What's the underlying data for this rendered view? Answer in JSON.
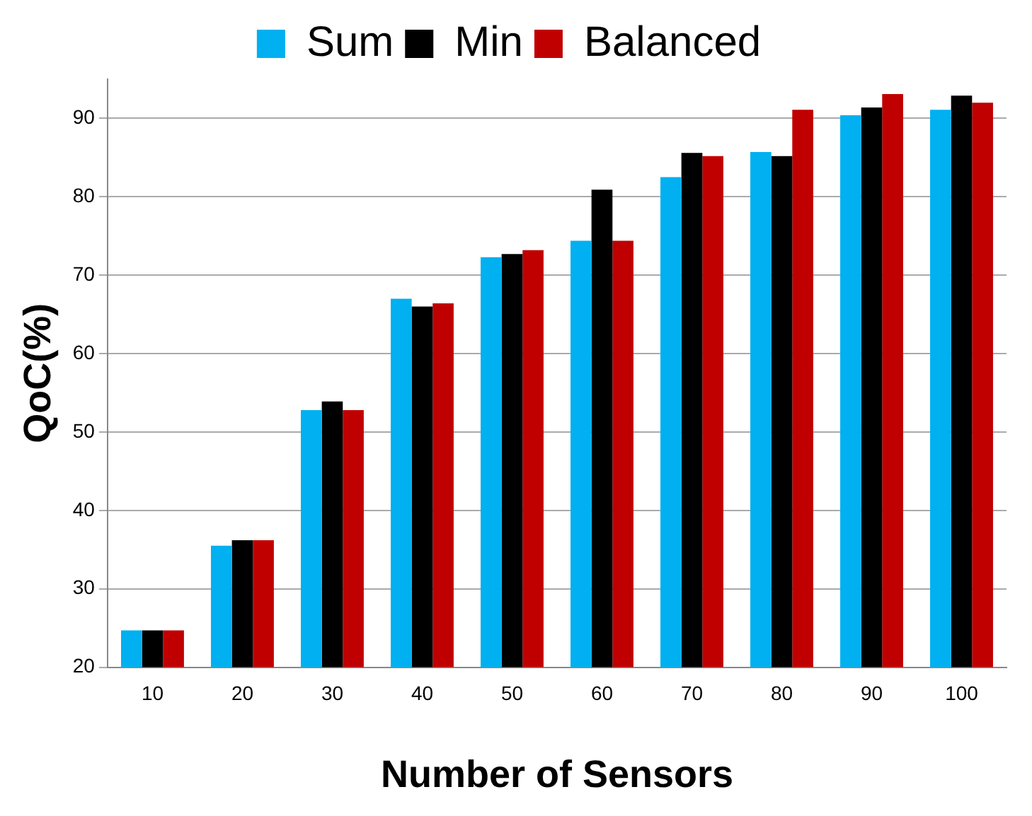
{
  "chart_data": {
    "type": "bar",
    "xlabel": "Number of Sensors",
    "ylabel": "QoC(%)",
    "categories": [
      "10",
      "20",
      "30",
      "40",
      "50",
      "60",
      "70",
      "80",
      "90",
      "100"
    ],
    "series": [
      {
        "name": "Sum",
        "color": "#00b0f0",
        "values": [
          24.7,
          35.5,
          52.8,
          67,
          72.3,
          74.4,
          82.5,
          85.7,
          90.4,
          91.1
        ]
      },
      {
        "name": "Min",
        "color": "#000000",
        "values": [
          24.7,
          36.2,
          53.9,
          66,
          72.7,
          80.9,
          85.6,
          85.2,
          91.4,
          92.9
        ]
      },
      {
        "name": "Balanced",
        "color": "#c00000",
        "values": [
          24.7,
          36.2,
          52.8,
          66.4,
          73.2,
          74.4,
          85.2,
          91.1,
          93.1,
          92
        ]
      }
    ],
    "ylim": [
      20,
      95
    ],
    "yticks": [
      20,
      30,
      40,
      50,
      60,
      70,
      80,
      90
    ],
    "grid": "y",
    "legend": "top"
  }
}
